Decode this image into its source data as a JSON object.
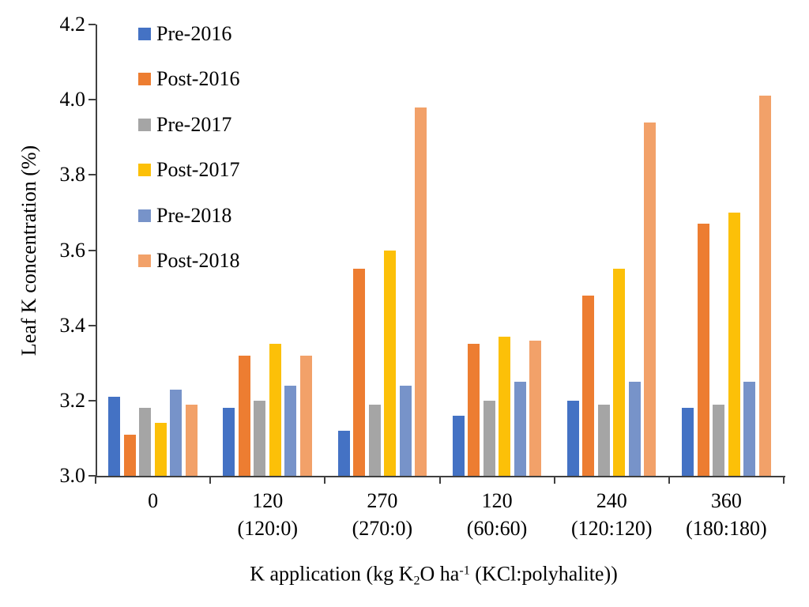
{
  "chart_data": {
    "type": "bar",
    "title": "",
    "ylabel": "Leaf K concentration (%)",
    "xlabel_plain": "K application (kg K2O ha-1 (KCl:polyhalite))",
    "xlabel_parts": [
      {
        "text": "K application (kg K",
        "style": "normal"
      },
      {
        "text": "2",
        "style": "sub"
      },
      {
        "text": "O ha",
        "style": "normal"
      },
      {
        "text": "-1",
        "style": "sup"
      },
      {
        "text": " (KCl:polyhalite))",
        "style": "normal"
      }
    ],
    "ylim": [
      3.0,
      4.2
    ],
    "ytick_step": 0.2,
    "yticks": [
      "3.0",
      "3.2",
      "3.4",
      "3.6",
      "3.8",
      "4.0",
      "4.2"
    ],
    "grid": false,
    "legend_position": "upper-left-inside",
    "categories": [
      {
        "line1": "0",
        "line2": ""
      },
      {
        "line1": "120",
        "line2": "(120:0)"
      },
      {
        "line1": "270",
        "line2": "(270:0)"
      },
      {
        "line1": "120",
        "line2": "(60:60)"
      },
      {
        "line1": "240",
        "line2": "(120:120)"
      },
      {
        "line1": "360",
        "line2": "(180:180)"
      }
    ],
    "series": [
      {
        "name": "Pre-2016",
        "color": "#4472C4",
        "values": [
          3.21,
          3.18,
          3.12,
          3.16,
          3.2,
          3.18
        ]
      },
      {
        "name": "Post-2016",
        "color": "#ED7D31",
        "values": [
          3.11,
          3.32,
          3.55,
          3.35,
          3.48,
          3.67
        ]
      },
      {
        "name": "Pre-2017",
        "color": "#A5A5A5",
        "values": [
          3.18,
          3.2,
          3.19,
          3.2,
          3.19,
          3.19
        ]
      },
      {
        "name": "Post-2017",
        "color": "#FCC008",
        "values": [
          3.14,
          3.35,
          3.6,
          3.37,
          3.55,
          3.7
        ]
      },
      {
        "name": "Pre-2018",
        "color": "#7793C9",
        "values": [
          3.23,
          3.24,
          3.24,
          3.25,
          3.25,
          3.25
        ]
      },
      {
        "name": "Post-2018",
        "color": "#F2A169",
        "values": [
          3.19,
          3.32,
          3.98,
          3.36,
          3.94,
          4.01
        ]
      }
    ],
    "axis_color": "#404040",
    "text_color": "#000000",
    "background": "#FFFFFF"
  }
}
